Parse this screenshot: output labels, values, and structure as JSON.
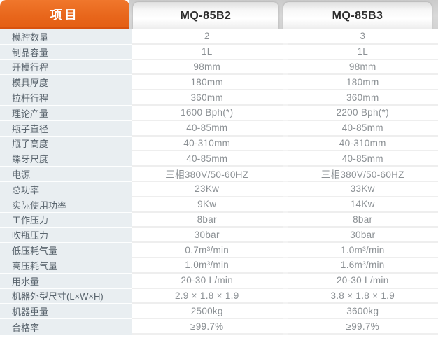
{
  "header": {
    "param_column_title": "项目",
    "model_columns": [
      "MQ-85B2",
      "MQ-85B3"
    ]
  },
  "colors": {
    "accent_orange": "#e8661b",
    "label_column_bg": "#e9eef1",
    "header_strip_bg": "#d9d9d9",
    "value_text": "#8b9094",
    "label_text": "#59646d"
  },
  "chart_data": {
    "type": "table",
    "columns": [
      "项目",
      "MQ-85B2",
      "MQ-85B3"
    ],
    "rows": [
      {
        "label": "模腔数量",
        "b2": "2",
        "b3": "3"
      },
      {
        "label": "制品容量",
        "b2": "1L",
        "b3": "1L"
      },
      {
        "label": "开模行程",
        "b2": "98mm",
        "b3": "98mm"
      },
      {
        "label": "模具厚度",
        "b2": "180mm",
        "b3": "180mm"
      },
      {
        "label": "拉杆行程",
        "b2": "360mm",
        "b3": "360mm"
      },
      {
        "label": "理论产量",
        "b2": "1600 Bph(*)",
        "b3": "2200 Bph(*)"
      },
      {
        "label": "瓶子直径",
        "b2": "40-85mm",
        "b3": "40-85mm"
      },
      {
        "label": "瓶子高度",
        "b2": "40-310mm",
        "b3": "40-310mm"
      },
      {
        "label": "螺牙尺度",
        "b2": "40-85mm",
        "b3": "40-85mm"
      },
      {
        "label": "电源",
        "b2": "三相380V/50-60HZ",
        "b3": "三相380V/50-60HZ"
      },
      {
        "label": "总功率",
        "b2": "23Kw",
        "b3": "33Kw"
      },
      {
        "label": "实际使用功率",
        "b2": "9Kw",
        "b3": "14Kw"
      },
      {
        "label": "工作压力",
        "b2": "8bar",
        "b3": "8bar"
      },
      {
        "label": "吹瓶压力",
        "b2": "30bar",
        "b3": "30bar"
      },
      {
        "label": "低压耗气量",
        "b2": "0.7m³/min",
        "b3": "1.0m³/min"
      },
      {
        "label": "高压耗气量",
        "b2": "1.0m³/min",
        "b3": "1.6m³/min"
      },
      {
        "label": "用水量",
        "b2": "20-30 L/min",
        "b3": "20-30 L/min"
      },
      {
        "label": "机器外型尺寸(L×W×H)",
        "b2": "2.9 × 1.8 × 1.9",
        "b3": "3.8 × 1.8 × 1.9"
      },
      {
        "label": "机器重量",
        "b2": "2500kg",
        "b3": "3600kg"
      },
      {
        "label": "合格率",
        "b2": "≥99.7%",
        "b3": "≥99.7%"
      }
    ]
  }
}
